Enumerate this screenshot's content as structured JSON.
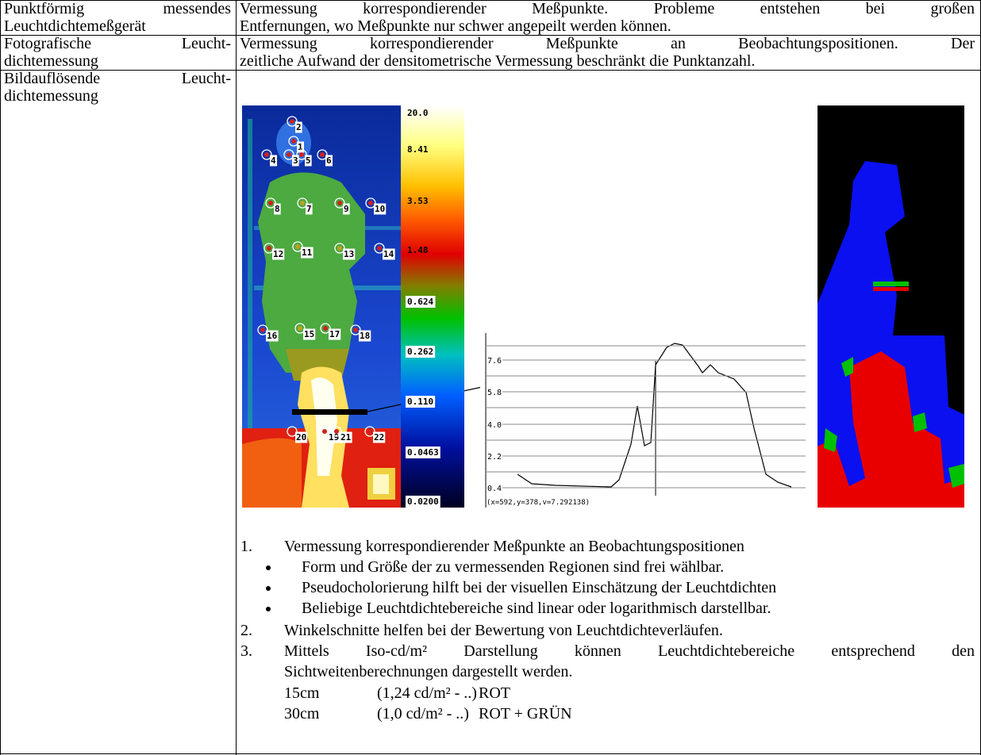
{
  "table": {
    "rows": [
      [
        [
          "Punktförmig messendes",
          "Leuchtdichtemeßgerät"
        ],
        [
          "Vermessung korrespondierender Meßpunkte. Probleme entstehen bei großen",
          "Entfernungen, wo Meßpunkte nur schwer angepeilt werden können."
        ]
      ],
      [
        [
          "Fotografische Leucht-",
          "dichtemessung"
        ],
        [
          "Vermessung korrespondierender Meßpunkte an Beobachtungspositionen. Der",
          "zeitliche Aufwand der densitometrische Vermessung beschränkt die Punktanzahl."
        ]
      ],
      [
        [
          "Bildauflösende Leucht-",
          "dichtemessung"
        ]
      ]
    ]
  },
  "figure": {
    "markers": [
      "2",
      "1",
      "4",
      "3",
      "5",
      "6",
      "8",
      "7",
      "9",
      "10",
      "12",
      "11",
      "13",
      "14",
      "16",
      "15",
      "17",
      "18",
      "20",
      "19",
      "21",
      "22"
    ],
    "scale_labels": [
      "20.0",
      "8.41",
      "3.53",
      "1.48",
      "0.624",
      "0.262",
      "0.110",
      "0.0463",
      "0.0200"
    ],
    "profile": {
      "yticks": [
        "7.6",
        "5.8",
        "4.0",
        "2.2",
        "0.4"
      ],
      "caption": "(x=592,y=378,v=7.292138)"
    }
  },
  "list": {
    "items": [
      {
        "number": "1.",
        "text": "Vermessung korrespondierender Meßpunkte an Beobachtungspositionen",
        "bullets": [
          "Form und Größe der zu vermessenden Regionen sind frei wählbar.",
          "Pseudocholorierung hilft bei der visuellen Einschätzung der Leuchtdichten",
          "Beliebige Leuchtdichtebereiche sind linear oder logarithmisch darstellbar."
        ]
      },
      {
        "number": "2.",
        "text": "Winkelschnitte helfen bei der Bewertung von Leuchtdichteverläufen."
      },
      {
        "number": "3.",
        "text": [
          "Mittels Iso-cd/m² Darstellung können Leuchtdichtebereiche entsprechend den",
          "Sichtweitenberechnungen dargestellt werden."
        ],
        "table": [
          [
            "15cm",
            "(1,24 cd/m² - ..)",
            "ROT"
          ],
          [
            "30cm",
            "(1,0 cd/m² - ..)",
            "ROT + GRÜN"
          ]
        ]
      }
    ]
  }
}
